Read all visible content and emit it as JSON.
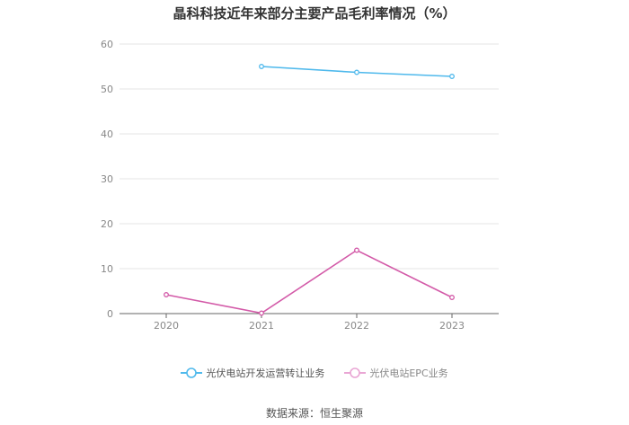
{
  "chart_data": {
    "type": "line",
    "title": "晶科科技近年来部分主要产品毛利率情况（%）",
    "categories": [
      "2020",
      "2021",
      "2022",
      "2023"
    ],
    "ylim": [
      0,
      60
    ],
    "yticks": [
      "0",
      "10",
      "20",
      "30",
      "40",
      "50",
      "60"
    ],
    "grid": true,
    "legend_position": "bottom",
    "series": [
      {
        "name": "光伏电站开发运营转让业务",
        "color": "#4fb9ec",
        "values": [
          null,
          55.0,
          53.7,
          52.8
        ]
      },
      {
        "name": "光伏电站EPC业务",
        "color": "#d35aa8",
        "values": [
          4.2,
          0.1,
          14.1,
          3.6
        ]
      }
    ]
  },
  "source": "数据来源：恒生聚源"
}
